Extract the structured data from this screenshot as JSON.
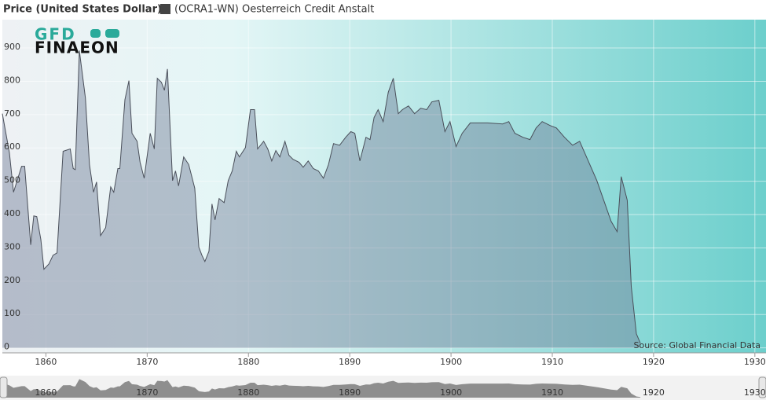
{
  "chart_data": {
    "type": "area",
    "title": "Price (United States Dollar)",
    "logo": {
      "top": "GFD",
      "bottom": "FINAEON"
    },
    "source": "Source: Global Financial Data",
    "series": [
      {
        "name": "(OCRA1-WN) Oesterreich Credit Anstalt",
        "color": "#4a4f5a",
        "x": [
          1855.7,
          1856.4,
          1856.8,
          1857.6,
          1857.9,
          1858.5,
          1858.8,
          1859.1,
          1859.5,
          1859.8,
          1860.3,
          1860.7,
          1861.1,
          1861.7,
          1862.4,
          1862.7,
          1862.9,
          1863.3,
          1863.9,
          1864.3,
          1864.7,
          1865.0,
          1865.4,
          1865.9,
          1866.4,
          1866.7,
          1867.1,
          1867.3,
          1867.8,
          1868.2,
          1868.5,
          1869.0,
          1869.3,
          1869.7,
          1870.3,
          1870.7,
          1871.0,
          1871.4,
          1871.7,
          1872.0,
          1872.5,
          1872.8,
          1873.1,
          1873.6,
          1874.1,
          1874.7,
          1875.1,
          1875.4,
          1875.7,
          1876.1,
          1876.4,
          1876.7,
          1877.1,
          1877.6,
          1878.0,
          1878.4,
          1878.8,
          1879.1,
          1879.7,
          1880.2,
          1880.6,
          1880.9,
          1881.5,
          1881.9,
          1882.3,
          1882.7,
          1883.1,
          1883.6,
          1884.0,
          1884.4,
          1885.0,
          1885.4,
          1885.9,
          1886.4,
          1886.9,
          1887.4,
          1887.9,
          1888.4,
          1889.0,
          1889.6,
          1890.1,
          1890.5,
          1891.0,
          1891.6,
          1892.0,
          1892.4,
          1892.8,
          1893.3,
          1893.8,
          1894.3,
          1894.8,
          1895.2,
          1895.8,
          1896.4,
          1897.0,
          1897.6,
          1898.1,
          1898.8,
          1899.4,
          1899.9,
          1900.5,
          1901.1,
          1901.9,
          1903.6,
          1905.1,
          1905.7,
          1906.3,
          1907.1,
          1907.8,
          1908.4,
          1909.0,
          1909.8,
          1910.4,
          1911.2,
          1912.0,
          1912.7,
          1914.4,
          1915.8,
          1916.4,
          1916.8,
          1917.4,
          1917.8,
          1918.3,
          1918.7
        ],
        "values": [
          703,
          585,
          467,
          545,
          545,
          309,
          396,
          394,
          325,
          236,
          252,
          278,
          285,
          590,
          597,
          538,
          535,
          892,
          750,
          550,
          467,
          498,
          337,
          361,
          483,
          467,
          538,
          538,
          745,
          802,
          644,
          620,
          557,
          509,
          644,
          597,
          809,
          797,
          773,
          837,
          502,
          531,
          486,
          573,
          550,
          479,
          302,
          278,
          259,
          290,
          432,
          384,
          448,
          436,
          502,
          531,
          590,
          573,
          601,
          715,
          715,
          597,
          620,
          597,
          561,
          592,
          573,
          620,
          578,
          566,
          557,
          542,
          561,
          538,
          531,
          509,
          550,
          613,
          608,
          632,
          649,
          644,
          561,
          632,
          625,
          691,
          715,
          679,
          767,
          809,
          703,
          715,
          726,
          703,
          719,
          715,
          738,
          743,
          649,
          679,
          604,
          644,
          675,
          675,
          672,
          679,
          644,
          632,
          625,
          660,
          679,
          667,
          660,
          632,
          608,
          620,
          502,
          380,
          349,
          514,
          443,
          184,
          42,
          14
        ]
      }
    ],
    "xlim": [
      1855.7,
      1931.1
    ],
    "xticks": [
      1860,
      1870,
      1880,
      1890,
      1900,
      1910,
      1920,
      1930
    ],
    "ylim": [
      -15,
      985
    ],
    "yticks": [
      0,
      100,
      200,
      300,
      400,
      500,
      600,
      700,
      800,
      900
    ],
    "grid": true
  }
}
